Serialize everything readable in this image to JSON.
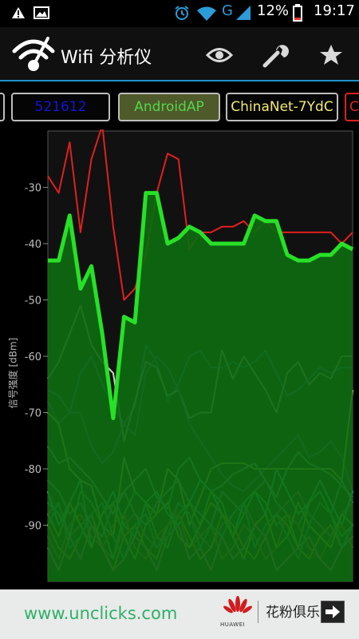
{
  "status_bar": {
    "network_type": "G",
    "battery": "12%",
    "time": "19:17",
    "icons": [
      "warning-icon",
      "image-icon",
      "alarm-icon",
      "wifi-icon",
      "signal-icon",
      "battery-icon"
    ]
  },
  "action_bar": {
    "title": "Wifi 分析仪",
    "icons": [
      "wifi-logo-icon",
      "eye-icon",
      "wrench-icon",
      "star-icon"
    ]
  },
  "tabs": [
    {
      "label": "",
      "color": "#cfcfcf"
    },
    {
      "label": "521612",
      "color": "#1414d8"
    },
    {
      "label": "AndroidAP",
      "color": "#52d64a"
    },
    {
      "label": "ChinaNet-7YdC",
      "color": "#f2ea74"
    },
    {
      "label": "C",
      "color": "#e02020"
    }
  ],
  "chart_data": {
    "type": "line",
    "ylabel": "信号强度 [dBm]",
    "yticks": [
      -30,
      -40,
      -50,
      -60,
      -70,
      -80,
      -90
    ],
    "ylim": [
      -100,
      -20
    ],
    "highlight_fill": "#0e6a10",
    "series": [
      {
        "name": "AndroidAP",
        "color": "#27e027",
        "width": 5,
        "fill": true,
        "values": [
          -43,
          -43,
          -35,
          -48,
          -44,
          -56,
          -71,
          -53,
          -54,
          -31,
          -31,
          -40,
          -39,
          -37,
          -38,
          -40,
          -40,
          -40,
          -40,
          -35,
          -36,
          -36,
          -42,
          -43,
          -43,
          -42,
          -42,
          -40,
          -41
        ]
      },
      {
        "color": "#e02020",
        "width": 2,
        "values": [
          -28,
          -31,
          -22,
          -38,
          -25,
          -19,
          -37,
          -50,
          -48,
          -42,
          -31,
          -24,
          -25,
          -41,
          -38,
          -38,
          -37,
          -37,
          -36,
          -38,
          -36,
          -38,
          -38,
          -38,
          -38,
          -38,
          -38,
          -40,
          -38
        ]
      },
      {
        "color": "#2d73d6",
        "width": 2,
        "values": [
          -66,
          -67,
          -70,
          -63,
          -60,
          -65,
          -69,
          -72,
          -69,
          -58,
          -61,
          -68,
          -65,
          -60,
          -59,
          -62,
          -62,
          -61,
          -62,
          -61,
          -59,
          -63,
          -67,
          -66,
          -64,
          -62,
          -63,
          -62,
          -62
        ]
      },
      {
        "color": "#cfcfcf",
        "width": 2,
        "values": [
          -64,
          -61,
          -56,
          -51,
          -58,
          -61,
          -63,
          -75,
          -68,
          -61,
          -62,
          -67,
          -66,
          -71,
          -70,
          -70,
          -59,
          -64,
          -60,
          -63,
          -66,
          -70,
          -63,
          -61,
          -65,
          -63,
          -64,
          -60,
          -60
        ]
      },
      {
        "color": "#5a4ec8",
        "width": 2,
        "values": [
          -68,
          -72,
          -70,
          -70,
          -76,
          -79,
          -77,
          -72,
          -74,
          -63,
          -60,
          -62,
          -66,
          -72,
          -75,
          -78,
          -81,
          -83,
          -84,
          -82,
          -80,
          -78,
          -76,
          -74,
          -78,
          -77,
          -75,
          -78,
          -84
        ]
      },
      {
        "color": "#e7e26a",
        "width": 2,
        "values": [
          -70,
          -72,
          -80,
          -82,
          -83,
          -90,
          -92,
          -78,
          -84,
          -86,
          -88,
          -80,
          -82,
          -90,
          -85,
          -80,
          -79,
          -79,
          -79,
          -80,
          -80,
          -80,
          -80,
          -80,
          -80,
          -80,
          -80,
          -82,
          -66
        ]
      },
      {
        "color": "#7ad0c0",
        "width": 2,
        "values": [
          -76,
          -79,
          -78,
          -80,
          -82,
          -85,
          -88,
          -84,
          -82,
          -80,
          -85,
          -87,
          -80,
          -78,
          -82,
          -84,
          -83,
          -81,
          -80,
          -79,
          -82,
          -85,
          -80,
          -77,
          -79,
          -80,
          -81,
          -83,
          -85
        ]
      },
      {
        "color": "#b04aa8",
        "width": 2,
        "values": [
          -88,
          -86,
          -92,
          -90,
          -88,
          -94,
          -96,
          -90,
          -88,
          -92,
          -94,
          -90,
          -86,
          -88,
          -92,
          -94,
          -90,
          -88,
          -86,
          -90,
          -92,
          -88,
          -86,
          -84,
          -88,
          -90,
          -92,
          -88,
          -86
        ]
      },
      {
        "color": "#8aa0d8",
        "width": 2,
        "values": [
          -82,
          -84,
          -88,
          -86,
          -90,
          -92,
          -86,
          -84,
          -88,
          -90,
          -86,
          -84,
          -82,
          -86,
          -88,
          -90,
          -84,
          -86,
          -88,
          -84,
          -82,
          -86,
          -88,
          -90,
          -86,
          -84,
          -88,
          -82,
          -86
        ]
      },
      {
        "color": "#3de8e0",
        "width": 2,
        "values": [
          -84,
          -90,
          -86,
          -82,
          -94,
          -88,
          -84,
          -90,
          -92,
          -86,
          -84,
          -88,
          -90,
          -86,
          -82,
          -84,
          -88,
          -92,
          -86,
          -84,
          -88,
          -80,
          -84,
          -88,
          -86,
          -82,
          -86,
          -90,
          -84
        ]
      },
      {
        "color": "#50e858",
        "width": 2,
        "values": [
          -86,
          -88,
          -92,
          -84,
          -86,
          -90,
          -96,
          -88,
          -84,
          -86,
          -92,
          -94,
          -88,
          -86,
          -90,
          -84,
          -86,
          -92,
          -88,
          -84,
          -86,
          -90,
          -88,
          -94,
          -86,
          -84,
          -88,
          -92,
          -90
        ]
      },
      {
        "color": "#f0a030",
        "width": 2,
        "values": [
          -90,
          -94,
          -96,
          -92,
          -88,
          -94,
          -98,
          -92,
          -90,
          -94,
          -96,
          -90,
          -88,
          -92,
          -96,
          -94,
          -88,
          -90,
          -94,
          -96,
          -92,
          -88,
          -90,
          -94,
          -96,
          -92,
          -90,
          -94,
          -92
        ]
      },
      {
        "color": "#c05a2a",
        "width": 2,
        "values": [
          -92,
          -96,
          -90,
          -88,
          -92,
          -94,
          -90,
          -88,
          -94,
          -96,
          -92,
          -90,
          -88,
          -94,
          -92,
          -90,
          -96,
          -94,
          -90,
          -92,
          -96,
          -94,
          -88,
          -90,
          -94,
          -96,
          -92,
          -90,
          -94
        ]
      },
      {
        "color": "#a8e040",
        "width": 2,
        "values": [
          -88,
          -92,
          -86,
          -90,
          -94,
          -88,
          -86,
          -92,
          -96,
          -90,
          -88,
          -86,
          -92,
          -94,
          -90,
          -86,
          -88,
          -92,
          -96,
          -90,
          -88,
          -94,
          -92,
          -86,
          -90,
          -92,
          -94,
          -88,
          -90
        ]
      },
      {
        "color": "#e86ad0",
        "width": 2,
        "values": [
          -94,
          -98,
          -92,
          -96,
          -90,
          -94,
          -98,
          -96,
          -92,
          -94,
          -98,
          -92,
          -90,
          -96,
          -94,
          -98,
          -92,
          -96,
          -94,
          -90,
          -92,
          -98,
          -96,
          -94,
          -92,
          -96,
          -98,
          -94,
          -92
        ]
      },
      {
        "color": "#2fae9a",
        "width": 2,
        "values": [
          -90,
          -86,
          -94,
          -92,
          -88,
          -86,
          -92,
          -96,
          -90,
          -88,
          -94,
          -92,
          -86,
          -88,
          -94,
          -90,
          -92,
          -88,
          -86,
          -94,
          -90,
          -88,
          -92,
          -96,
          -90,
          -86,
          -88,
          -94,
          -90
        ]
      }
    ]
  },
  "ad_banner": {
    "url_text": "www.unclicks.com",
    "club_text": "花粉俱乐部",
    "brand_text": "HUAWEI"
  }
}
